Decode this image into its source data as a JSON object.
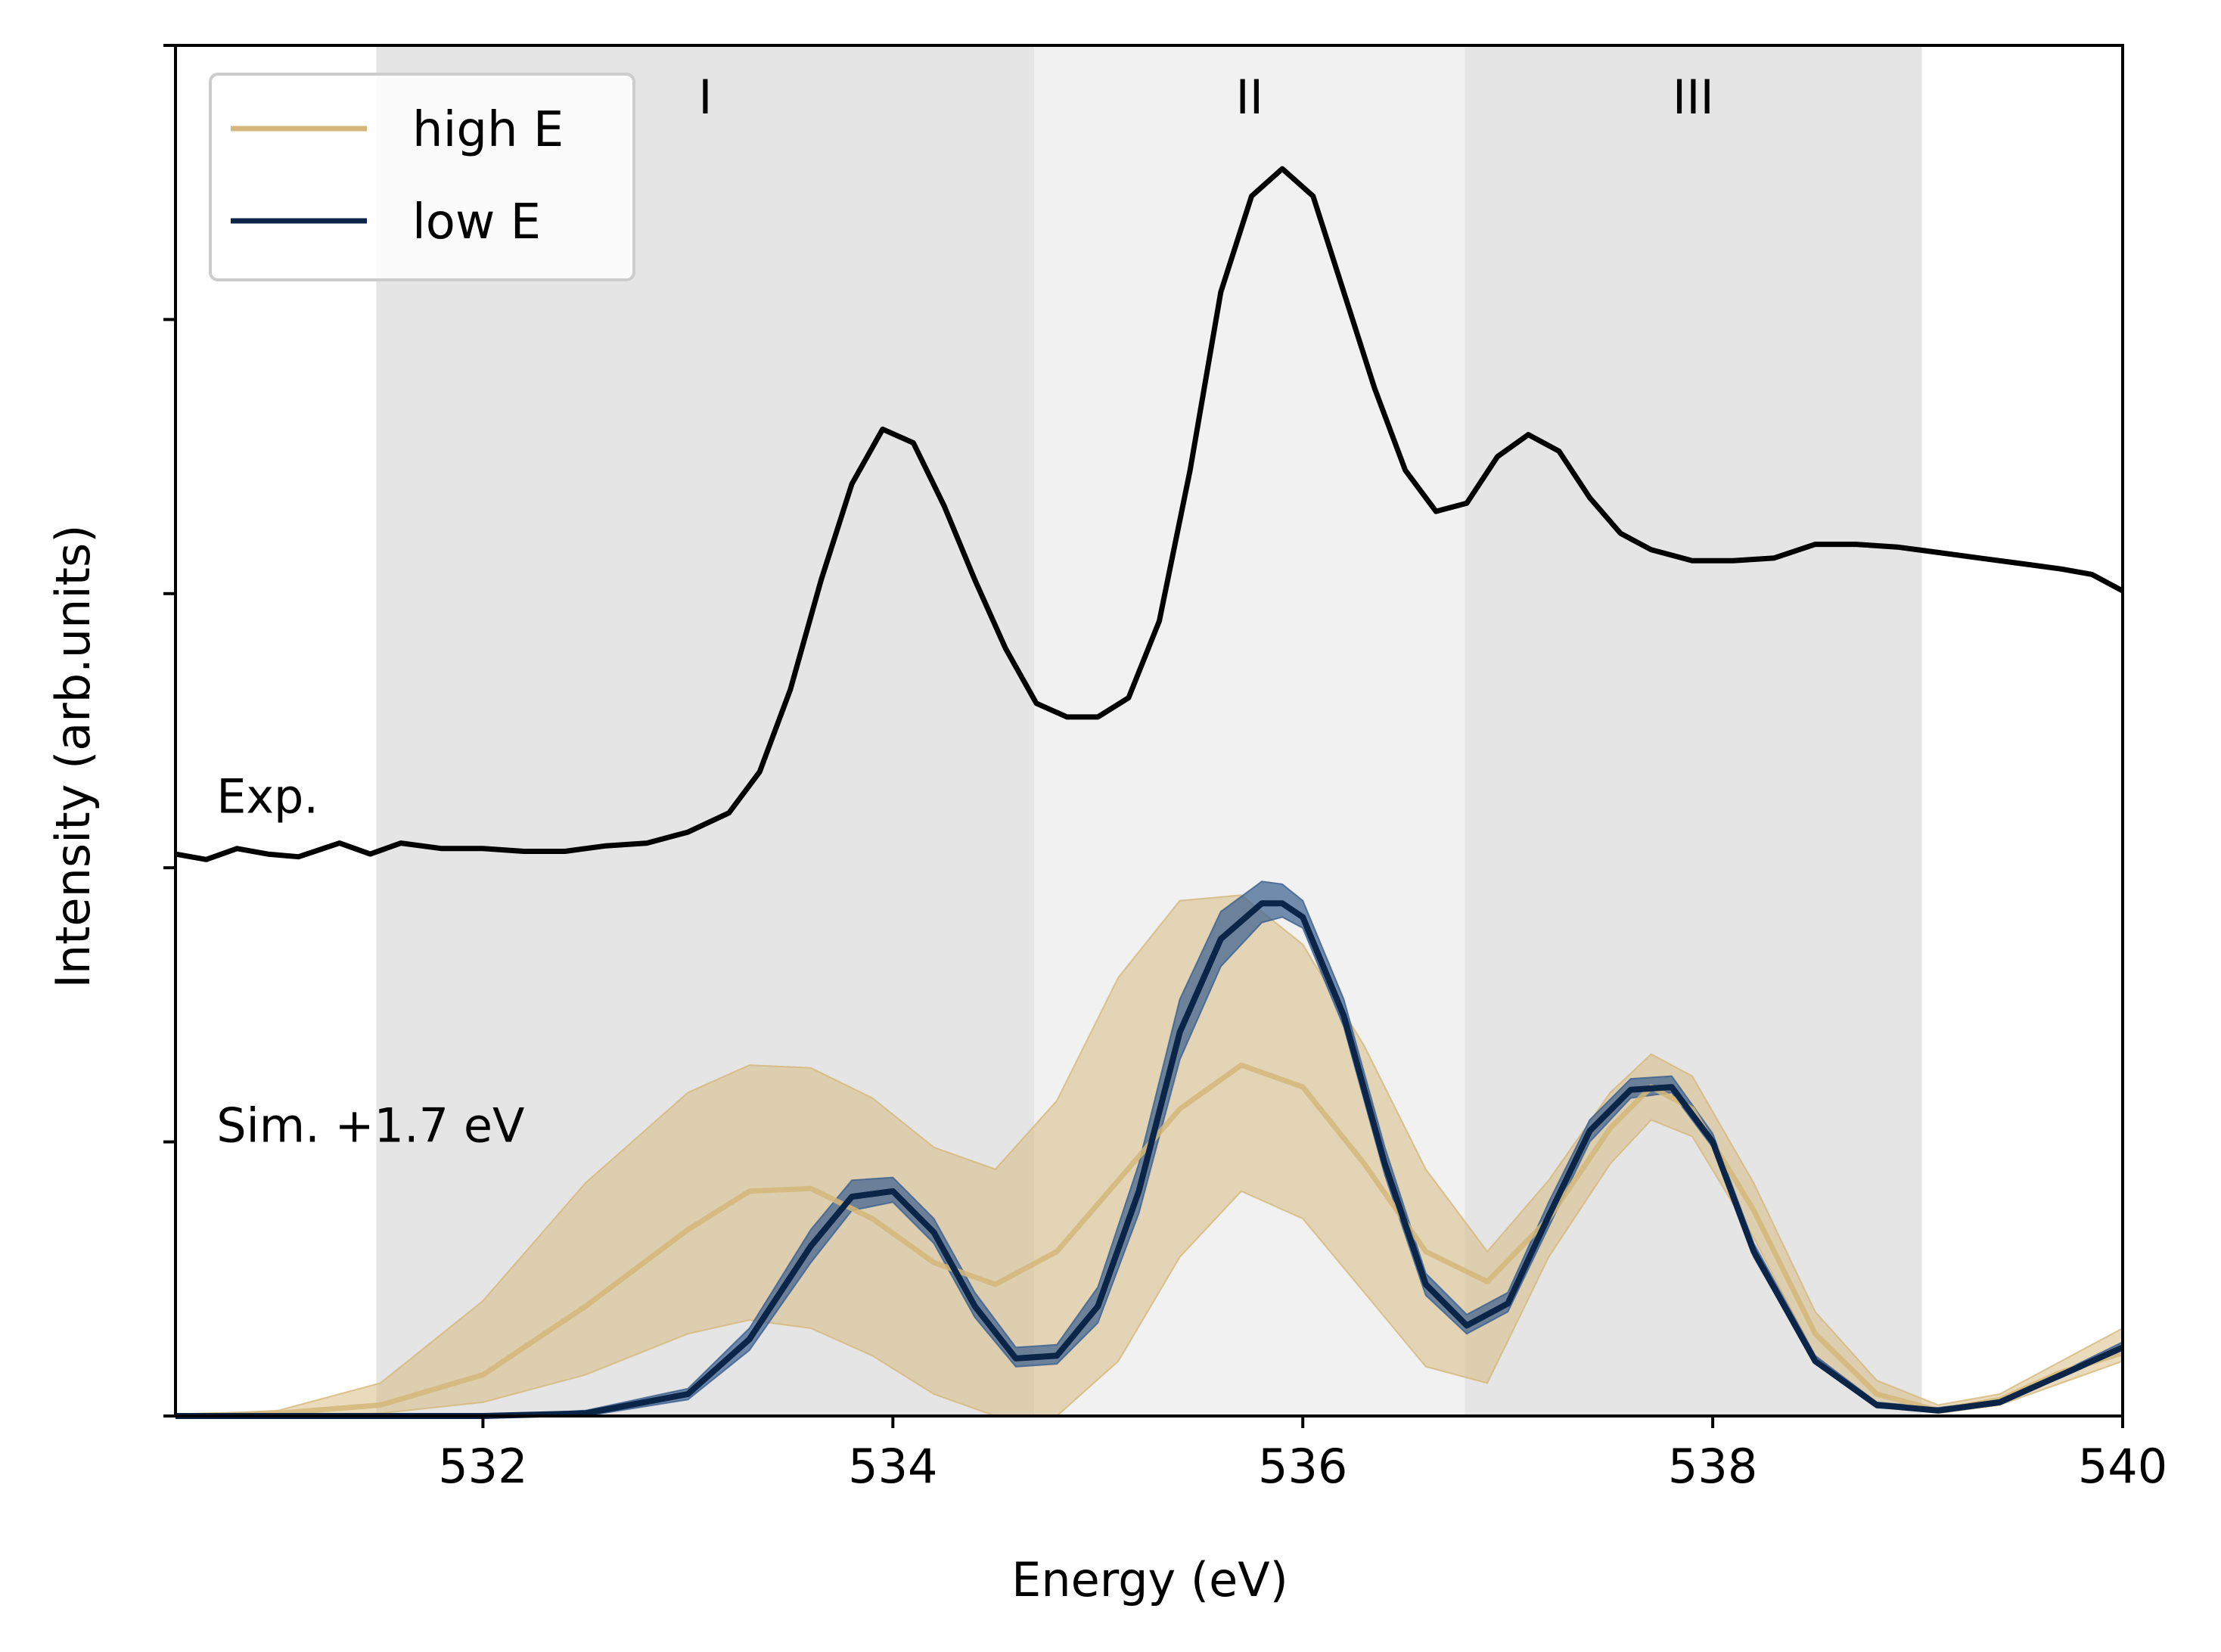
{
  "chart_data": {
    "type": "line",
    "xlabel": "Energy (eV)",
    "ylabel": "Intensity (arb.units)",
    "xlim": [
      530.5,
      540.0
    ],
    "ylim": [
      0.0,
      5.0
    ],
    "xticks": [
      532,
      534,
      536,
      538,
      540
    ],
    "xtick_labels": [
      "532",
      "534",
      "536",
      "538",
      "540"
    ],
    "yticks": [
      0,
      1,
      2,
      3,
      4,
      5
    ],
    "regions": [
      {
        "label": "I",
        "x0": 531.48,
        "x1": 534.69,
        "shade": "#e5e5e5"
      },
      {
        "label": "II",
        "x0": 534.69,
        "x1": 536.79,
        "shade": "#f1f1f1"
      },
      {
        "label": "III",
        "x0": 536.79,
        "x1": 539.02,
        "shade": "#e5e5e5"
      }
    ],
    "annotations": [
      {
        "text": "Exp.",
        "x": 530.7,
        "y": 2.2
      },
      {
        "text": "Sim. +1.7 eV",
        "x": 530.7,
        "y": 1.0
      }
    ],
    "legend": {
      "position": "top-left",
      "entries": [
        {
          "label": "high E",
          "color": "#d4b77a"
        },
        {
          "label": "low E",
          "color": "#0b2548"
        }
      ]
    },
    "series": [
      {
        "name": "Exp.",
        "color": "#000000",
        "x": [
          530.5,
          530.65,
          530.8,
          530.95,
          531.1,
          531.3,
          531.45,
          531.6,
          531.8,
          532.0,
          532.2,
          532.4,
          532.6,
          532.8,
          533.0,
          533.2,
          533.35,
          533.5,
          533.65,
          533.8,
          533.95,
          534.1,
          534.25,
          534.4,
          534.55,
          534.7,
          534.85,
          535.0,
          535.15,
          535.3,
          535.45,
          535.6,
          535.75,
          535.9,
          536.05,
          536.2,
          536.35,
          536.5,
          536.65,
          536.8,
          536.95,
          537.1,
          537.25,
          537.4,
          537.55,
          537.7,
          537.9,
          538.1,
          538.3,
          538.5,
          538.7,
          538.9,
          539.1,
          539.3,
          539.5,
          539.7,
          539.85,
          540.0
        ],
        "y": [
          2.05,
          2.03,
          2.07,
          2.05,
          2.04,
          2.09,
          2.05,
          2.09,
          2.07,
          2.07,
          2.06,
          2.06,
          2.08,
          2.09,
          2.13,
          2.2,
          2.35,
          2.65,
          3.05,
          3.4,
          3.6,
          3.55,
          3.32,
          3.05,
          2.8,
          2.6,
          2.55,
          2.55,
          2.62,
          2.9,
          3.45,
          4.1,
          4.45,
          4.55,
          4.45,
          4.1,
          3.75,
          3.45,
          3.3,
          3.33,
          3.5,
          3.58,
          3.52,
          3.35,
          3.22,
          3.16,
          3.12,
          3.12,
          3.13,
          3.18,
          3.18,
          3.17,
          3.15,
          3.13,
          3.11,
          3.09,
          3.07,
          3.01
        ]
      },
      {
        "name": "high E",
        "color": "#d4b77a",
        "x": [
          530.5,
          531.0,
          531.5,
          532.0,
          532.5,
          533.0,
          533.3,
          533.6,
          533.9,
          534.2,
          534.5,
          534.8,
          535.1,
          535.4,
          535.7,
          536.0,
          536.3,
          536.6,
          536.9,
          537.2,
          537.5,
          537.7,
          537.9,
          538.2,
          538.5,
          538.8,
          539.1,
          539.4,
          539.7,
          540.0
        ],
        "y": [
          0.0,
          0.01,
          0.04,
          0.15,
          0.4,
          0.68,
          0.82,
          0.83,
          0.72,
          0.56,
          0.48,
          0.6,
          0.86,
          1.12,
          1.28,
          1.2,
          0.92,
          0.6,
          0.49,
          0.72,
          1.05,
          1.2,
          1.12,
          0.75,
          0.3,
          0.08,
          0.02,
          0.06,
          0.16,
          0.23
        ],
        "lower": [
          0.0,
          0.0,
          0.01,
          0.05,
          0.15,
          0.3,
          0.35,
          0.32,
          0.22,
          0.08,
          0.0,
          0.0,
          0.2,
          0.58,
          0.82,
          0.72,
          0.45,
          0.18,
          0.12,
          0.58,
          0.92,
          1.08,
          1.02,
          0.65,
          0.22,
          0.04,
          0.01,
          0.04,
          0.12,
          0.2
        ],
        "upper": [
          0.0,
          0.02,
          0.12,
          0.42,
          0.85,
          1.18,
          1.28,
          1.27,
          1.16,
          0.98,
          0.9,
          1.15,
          1.6,
          1.88,
          1.9,
          1.72,
          1.35,
          0.9,
          0.6,
          0.86,
          1.18,
          1.32,
          1.24,
          0.85,
          0.38,
          0.13,
          0.04,
          0.08,
          0.2,
          0.32
        ]
      },
      {
        "name": "low E",
        "color": "#0b2548",
        "x": [
          530.5,
          531.5,
          532.0,
          532.5,
          533.0,
          533.3,
          533.6,
          533.8,
          534.0,
          534.2,
          534.4,
          534.6,
          534.8,
          535.0,
          535.2,
          535.4,
          535.6,
          535.8,
          535.9,
          536.0,
          536.2,
          536.4,
          536.6,
          536.8,
          537.0,
          537.2,
          537.4,
          537.6,
          537.8,
          538.0,
          538.2,
          538.5,
          538.8,
          539.1,
          539.4,
          539.7,
          540.0
        ],
        "y": [
          0.0,
          0.0,
          0.0,
          0.01,
          0.08,
          0.28,
          0.62,
          0.8,
          0.82,
          0.67,
          0.4,
          0.21,
          0.22,
          0.4,
          0.82,
          1.4,
          1.74,
          1.87,
          1.87,
          1.82,
          1.46,
          0.92,
          0.48,
          0.33,
          0.41,
          0.73,
          1.04,
          1.19,
          1.2,
          1.0,
          0.6,
          0.2,
          0.04,
          0.02,
          0.05,
          0.15,
          0.25
        ],
        "lower": [
          0.0,
          0.0,
          0.0,
          0.0,
          0.06,
          0.24,
          0.56,
          0.75,
          0.78,
          0.63,
          0.36,
          0.18,
          0.19,
          0.34,
          0.74,
          1.3,
          1.64,
          1.8,
          1.82,
          1.78,
          1.42,
          0.88,
          0.44,
          0.3,
          0.38,
          0.69,
          1.0,
          1.16,
          1.18,
          0.98,
          0.58,
          0.19,
          0.03,
          0.02,
          0.05,
          0.14,
          0.24
        ],
        "upper": [
          0.0,
          0.0,
          0.0,
          0.02,
          0.1,
          0.32,
          0.68,
          0.86,
          0.87,
          0.72,
          0.45,
          0.25,
          0.26,
          0.47,
          0.92,
          1.52,
          1.84,
          1.95,
          1.94,
          1.88,
          1.52,
          0.98,
          0.52,
          0.37,
          0.45,
          0.78,
          1.08,
          1.23,
          1.24,
          1.03,
          0.63,
          0.22,
          0.05,
          0.03,
          0.06,
          0.16,
          0.27
        ]
      }
    ]
  }
}
